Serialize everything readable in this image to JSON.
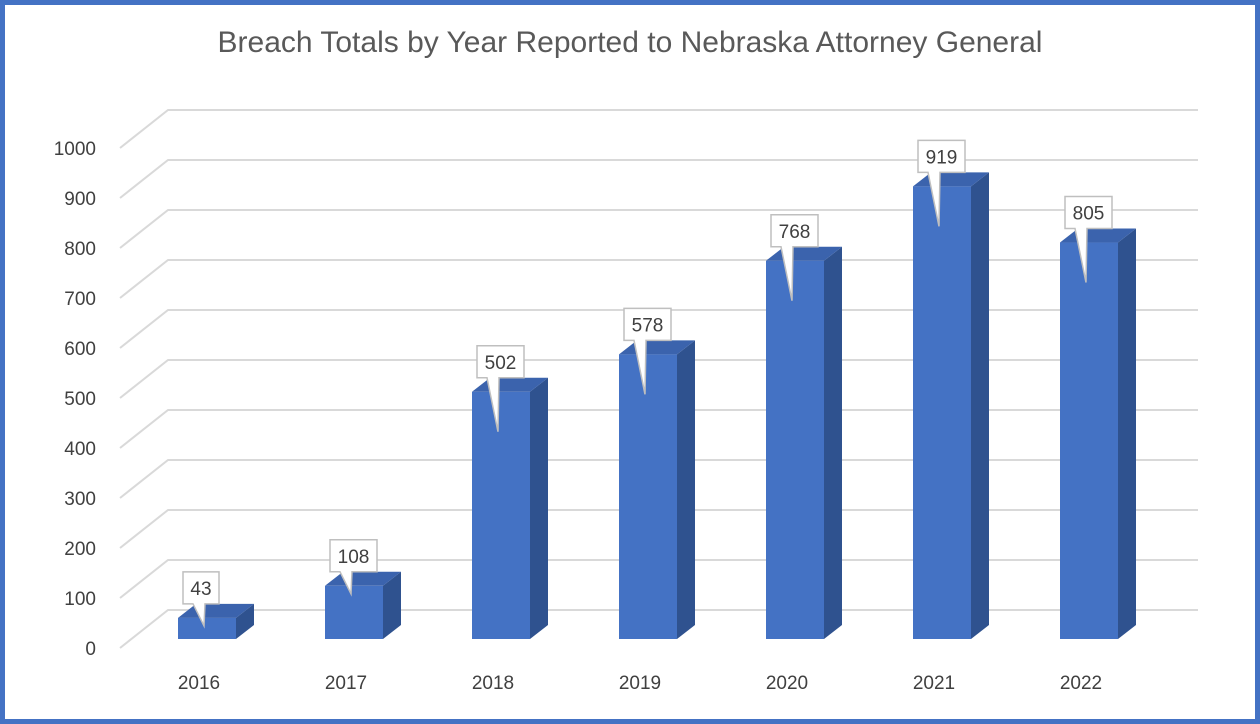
{
  "chart_data": {
    "type": "bar",
    "title": "Breach Totals by Year Reported to Nebraska Attorney General",
    "categories": [
      "2016",
      "2017",
      "2018",
      "2019",
      "2020",
      "2021",
      "2022"
    ],
    "values": [
      43,
      108,
      502,
      578,
      768,
      919,
      805
    ],
    "xlabel": "",
    "ylabel": "",
    "ylim": [
      0,
      1000
    ],
    "yticks": [
      "0",
      "100",
      "200",
      "300",
      "400",
      "500",
      "600",
      "700",
      "800",
      "900",
      "1000"
    ],
    "grid": true,
    "legend": "none",
    "three_d": true,
    "data_labels": true,
    "colors": {
      "bar_front": "#4472c4",
      "bar_side": "#2f528f",
      "bar_top": "#3b63ad",
      "frame": "#4472c4",
      "grid": "#d9d9d9"
    }
  }
}
